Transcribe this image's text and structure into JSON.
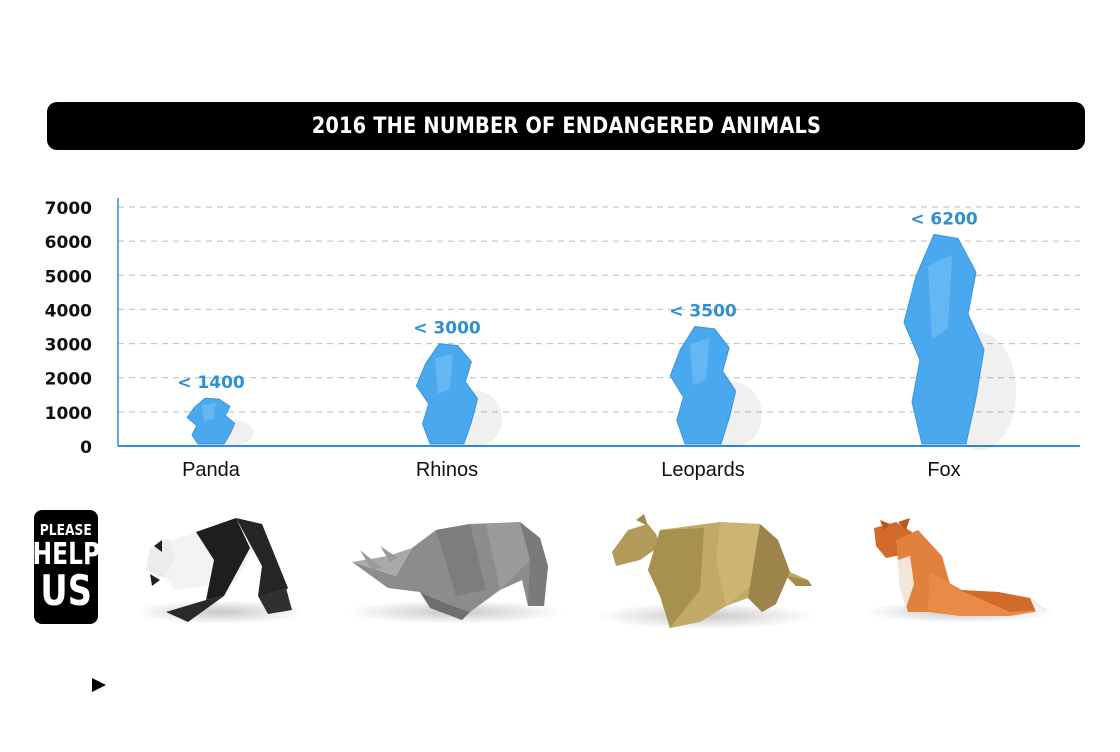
{
  "title": "2016 THE NUMBER OF ENDANGERED ANIMALS",
  "help_badge": {
    "line1": "PLEASE",
    "line2": "HELP",
    "line3": "US"
  },
  "colors": {
    "accent": "#2f8fcf",
    "blob": "#4aa8ee",
    "bar": "#000000"
  },
  "animal_icons": [
    "panda-origami-icon",
    "rhino-origami-icon",
    "leopard-origami-icon",
    "fox-origami-icon"
  ],
  "chart_data": {
    "type": "bar",
    "title": "2016 THE NUMBER OF ENDANGERED ANIMALS",
    "categories": [
      "Panda",
      "Rhinos",
      "Leopards",
      "Fox"
    ],
    "values": [
      1400,
      3000,
      3500,
      6200
    ],
    "data_labels": [
      "< 1400",
      "< 3000",
      "< 3500",
      "< 6200"
    ],
    "yticks": [
      "0",
      "1000",
      "2000",
      "3000",
      "4000",
      "5000",
      "6000",
      "7000"
    ],
    "ylim": [
      0,
      7000
    ],
    "grid": true,
    "xlabel": "",
    "ylabel": ""
  }
}
